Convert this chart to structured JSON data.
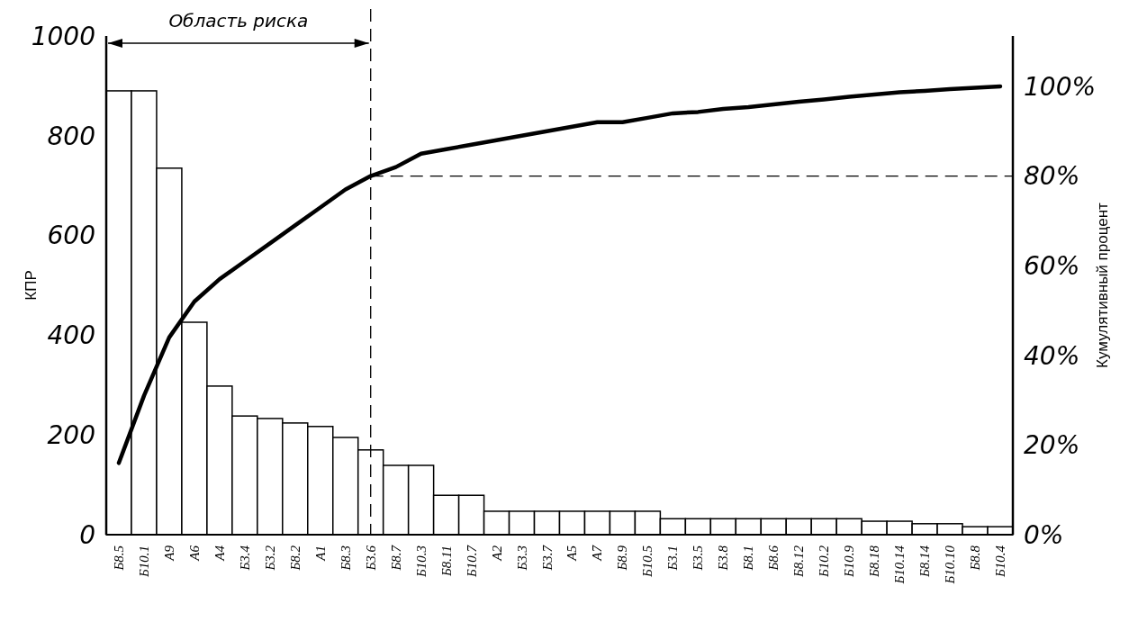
{
  "chart_data": {
    "type": "bar",
    "ylabel": "КПР",
    "y2label": "Кумулятивный процент",
    "categories": [
      "Б8.5",
      "Б10.1",
      "А9",
      "А6",
      "А4",
      "Б3.4",
      "Б3.2",
      "Б8.2",
      "А1",
      "Б8.3",
      "Б3.6",
      "Б8.7",
      "Б10.3",
      "Б8.11",
      "Б10.7",
      "А2",
      "Б3.3",
      "Б3.7",
      "А5",
      "А7",
      "Б8.9",
      "Б10.5",
      "Б3.1",
      "Б3.5",
      "Б3.8",
      "Б8.1",
      "Б8.6",
      "Б8.12",
      "Б10.2",
      "Б10.9",
      "Б8.18",
      "Б10.14",
      "Б8.14",
      "Б10.10",
      "Б8.8",
      "Б10.4"
    ],
    "series": [
      {
        "color": "#ffffff",
        "values": [
          890,
          890,
          735,
          426,
          298,
          238,
          233,
          224,
          217,
          195,
          170,
          139,
          139,
          79,
          79,
          47,
          47,
          47,
          47,
          47,
          47,
          47,
          32,
          32,
          32,
          32,
          32,
          32,
          32,
          32,
          27,
          27,
          22,
          22,
          16,
          16
        ]
      },
      {
        "type": "line",
        "axis": "y2",
        "color": "#000000",
        "values": [
          16,
          31,
          44,
          52,
          57,
          61,
          65,
          69,
          73,
          77,
          80,
          82,
          85,
          86,
          87,
          88,
          89,
          90,
          91,
          92,
          92,
          93,
          94,
          94.3,
          95,
          95.4,
          96,
          96.6,
          97.1,
          97.7,
          98.2,
          98.7,
          99,
          99.4,
          99.7,
          100
        ]
      }
    ],
    "ylim": [
      0,
      1000
    ],
    "yticks": [
      0,
      200,
      400,
      600,
      800,
      1000
    ],
    "y2lim": [
      0,
      100
    ],
    "y2ticks": [
      {
        "value": 0,
        "label": "0%"
      },
      {
        "value": 20,
        "label": "20%"
      },
      {
        "value": 40,
        "label": "40%"
      },
      {
        "value": 60,
        "label": "60%"
      },
      {
        "value": 80,
        "label": "80%"
      },
      {
        "value": 100,
        "label": "100%"
      }
    ],
    "ref_lines": [
      {
        "axis": "x",
        "value": "Б3.6",
        "line_style": "dashed"
      },
      {
        "axis": "y2",
        "value": 80,
        "line_style": "dashed"
      }
    ],
    "annotations": [
      "Область риска"
    ],
    "grid": false
  }
}
